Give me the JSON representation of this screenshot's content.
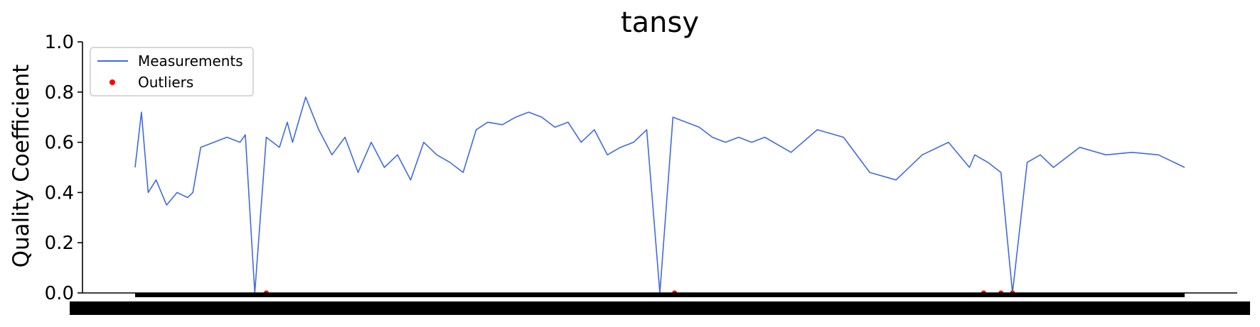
{
  "chart_data": {
    "type": "line",
    "title": "tansy",
    "xlabel": "",
    "ylabel": "Quality Coefficient",
    "ylim": [
      0,
      1.0
    ],
    "y_ticks": [
      "0.0",
      "0.2",
      "0.4",
      "0.6",
      "0.8",
      "1.0"
    ],
    "x_tick_labels_overlapping": true,
    "legend": {
      "placement": "top-left",
      "entries": [
        "Measurements",
        "Outliers"
      ]
    },
    "colors": {
      "line": "#4169e1",
      "outlier": "#ff0000",
      "axis": "#000000"
    },
    "x_index_range": [
      0,
      2000
    ],
    "series": [
      {
        "name": "Measurements",
        "x": [
          0,
          12,
          25,
          40,
          60,
          80,
          100,
          110,
          125,
          150,
          175,
          200,
          210,
          228,
          250,
          275,
          290,
          300,
          325,
          350,
          375,
          400,
          425,
          450,
          475,
          500,
          525,
          550,
          575,
          600,
          625,
          650,
          672,
          700,
          725,
          750,
          775,
          800,
          825,
          850,
          875,
          900,
          925,
          950,
          975,
          1000,
          1025,
          1050,
          1075,
          1100,
          1125,
          1150,
          1175,
          1200,
          1250,
          1300,
          1350,
          1400,
          1450,
          1500,
          1550,
          1590,
          1600,
          1625,
          1650,
          1672,
          1700,
          1725,
          1750,
          1800,
          1850,
          1900,
          1950,
          2000
        ],
        "y": [
          0.5,
          0.72,
          0.4,
          0.45,
          0.35,
          0.4,
          0.38,
          0.4,
          0.58,
          0.6,
          0.62,
          0.6,
          0.63,
          0.0,
          0.62,
          0.58,
          0.68,
          0.6,
          0.78,
          0.65,
          0.55,
          0.62,
          0.48,
          0.6,
          0.5,
          0.55,
          0.45,
          0.6,
          0.55,
          0.52,
          0.48,
          0.65,
          0.68,
          0.67,
          0.7,
          0.72,
          0.7,
          0.66,
          0.68,
          0.6,
          0.65,
          0.55,
          0.58,
          0.6,
          0.65,
          0.0,
          0.7,
          0.68,
          0.66,
          0.62,
          0.6,
          0.62,
          0.6,
          0.62,
          0.56,
          0.65,
          0.62,
          0.48,
          0.45,
          0.55,
          0.6,
          0.5,
          0.55,
          0.52,
          0.48,
          0.0,
          0.52,
          0.55,
          0.5,
          0.58,
          0.55,
          0.56,
          0.55,
          0.5
        ]
      },
      {
        "name": "Outliers",
        "x": [
          250,
          1028,
          1617,
          1650,
          1672
        ],
        "y": [
          0.0,
          0.0,
          0.0,
          0.0,
          0.0
        ]
      }
    ]
  }
}
